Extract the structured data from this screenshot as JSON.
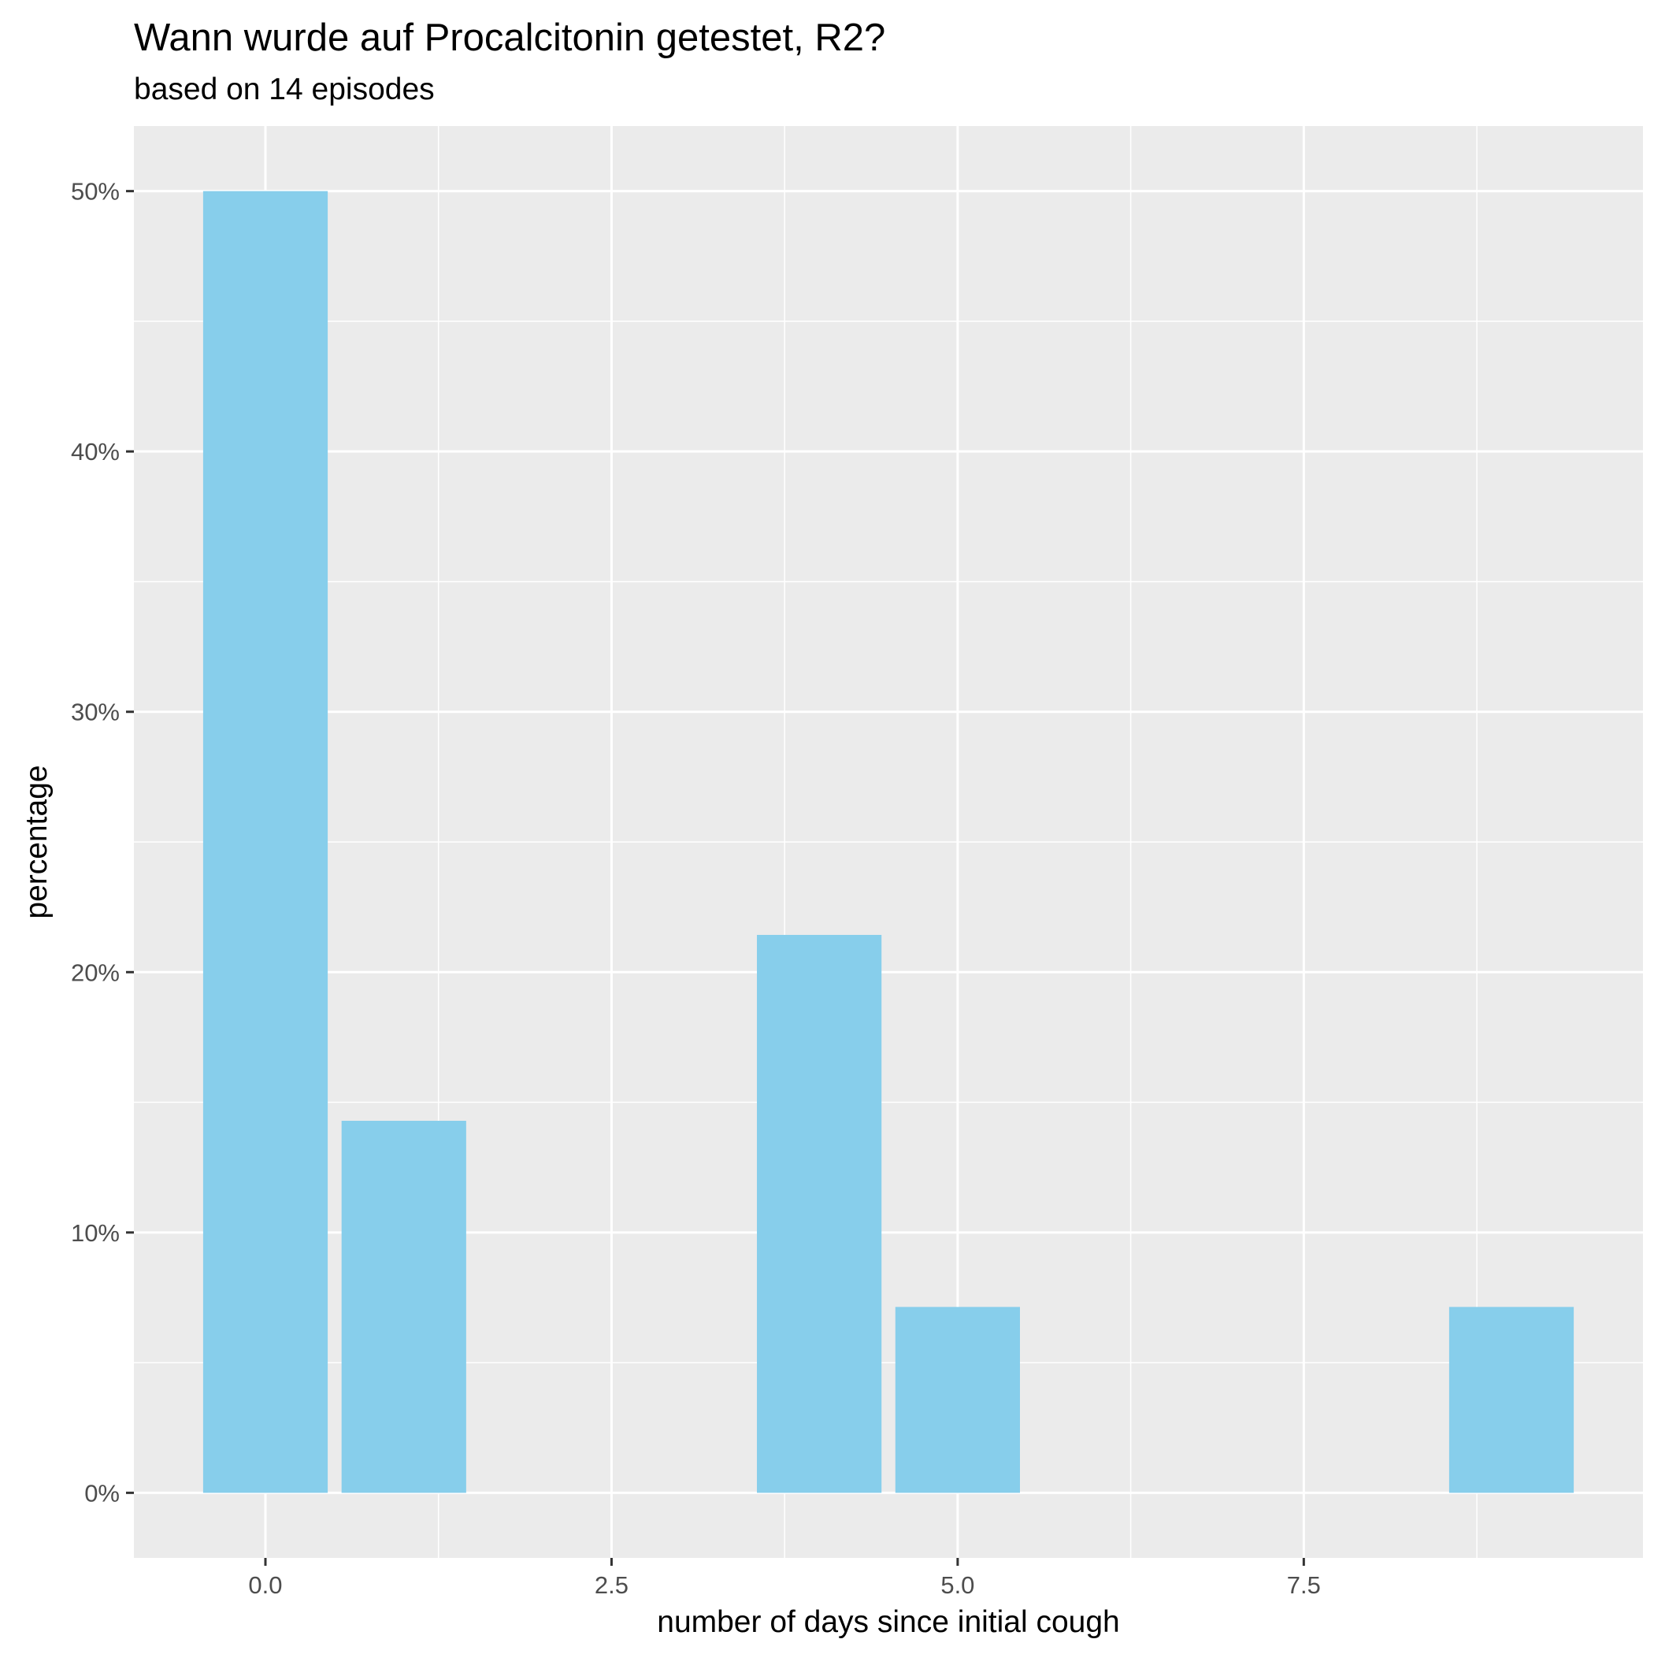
{
  "chart_data": {
    "type": "bar",
    "title": "Wann wurde auf Procalcitonin getestet, R2?",
    "subtitle": "based on 14 episodes",
    "xlabel": "number of days since initial cough",
    "ylabel": "percentage",
    "x": [
      0,
      1,
      4,
      5,
      9
    ],
    "values": [
      50.0,
      14.29,
      21.43,
      7.14,
      7.14
    ],
    "bar_width": 0.9,
    "xlim": [
      -0.95,
      9.95
    ],
    "ylim": [
      -2.5,
      52.5
    ],
    "x_ticks": [
      0,
      2.5,
      5,
      7.5
    ],
    "x_tick_labels": [
      "0.0",
      "2.5",
      "5.0",
      "7.5"
    ],
    "y_ticks": [
      0,
      10,
      20,
      30,
      40,
      50
    ],
    "y_tick_labels": [
      "0%",
      "10%",
      "20%",
      "30%",
      "40%",
      "50%"
    ],
    "grid": true,
    "colors": {
      "bar": "#87ceeb",
      "panel": "#ebebeb",
      "grid": "#ffffff",
      "tick": "#333333"
    }
  }
}
